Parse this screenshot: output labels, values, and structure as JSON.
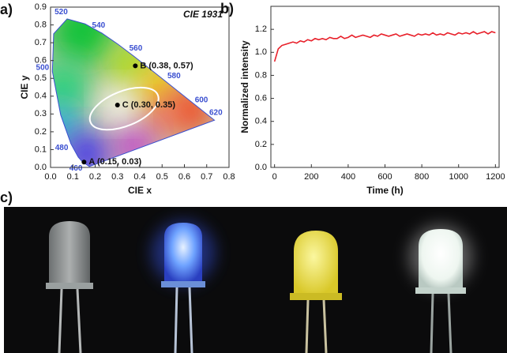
{
  "chart_data": [
    {
      "type": "scatter",
      "label": "a)",
      "title": "CIE 1931",
      "xlabel": "CIE x",
      "ylabel": "CIE y",
      "xlim": [
        0,
        0.8
      ],
      "ylim": [
        0,
        0.9
      ],
      "xticks": [
        {
          "value": 0,
          "label": "0.0"
        },
        0.1,
        0.2,
        0.3,
        0.4,
        0.5,
        0.6,
        0.7,
        0.8
      ],
      "yticks": [
        {
          "value": 0,
          "label": "0.0"
        },
        0.1,
        0.2,
        0.3,
        0.4,
        0.5,
        0.6,
        0.7,
        0.8,
        0.9
      ],
      "locus": {
        "color": "#3a4fd0",
        "x": [
          0.1741,
          0.144,
          0.1241,
          0.0913,
          0.0454,
          0.0082,
          0.0139,
          0.0743,
          0.1547,
          0.2296,
          0.3016,
          0.3731,
          0.4441,
          0.5125,
          0.627,
          0.6915,
          0.7347
        ],
        "y": [
          0.005,
          0.0297,
          0.0578,
          0.1327,
          0.295,
          0.5384,
          0.7502,
          0.8338,
          0.8059,
          0.7543,
          0.6923,
          0.6245,
          0.5547,
          0.4866,
          0.3725,
          0.3083,
          0.2653
        ],
        "labels": [
          null,
          "460",
          null,
          "480",
          null,
          "500",
          null,
          "520",
          null,
          "540",
          null,
          "560",
          null,
          "580",
          "600",
          "620",
          null
        ]
      },
      "series": [
        {
          "color": "#000000",
          "x": [
            0.15,
            0.38,
            0.3
          ],
          "values": [
            0.03,
            0.57,
            0.35
          ],
          "value_labels": [
            "A (0.15, 0.03)",
            "B (0.38, 0.57)",
            "C (0.30, 0.35)"
          ]
        }
      ]
    },
    {
      "type": "line",
      "label": "b)",
      "xlabel": "Time (h)",
      "ylabel": "Normalized intensity",
      "xlim": [
        -20,
        1220
      ],
      "ylim": [
        0,
        1.4
      ],
      "xticks": [
        0,
        200,
        400,
        600,
        800,
        1000,
        1200
      ],
      "yticks": [
        {
          "value": 0,
          "label": "0.0"
        },
        0.2,
        0.4,
        0.6,
        0.8,
        {
          "value": 1,
          "label": "1.0"
        },
        1.2
      ],
      "x": [
        0,
        20,
        40,
        60,
        80,
        100,
        120,
        140,
        160,
        180,
        200,
        220,
        240,
        260,
        280,
        300,
        320,
        340,
        360,
        380,
        400,
        420,
        440,
        460,
        480,
        500,
        520,
        540,
        560,
        580,
        600,
        620,
        640,
        660,
        680,
        700,
        720,
        740,
        760,
        780,
        800,
        820,
        840,
        860,
        880,
        900,
        920,
        940,
        960,
        980,
        1000,
        1020,
        1040,
        1060,
        1080,
        1100,
        1120,
        1140,
        1160,
        1180,
        1200
      ],
      "series": [
        {
          "color": "#e8202a",
          "values": [
            0.92,
            1.03,
            1.06,
            1.07,
            1.08,
            1.09,
            1.08,
            1.1,
            1.09,
            1.11,
            1.1,
            1.12,
            1.11,
            1.12,
            1.11,
            1.13,
            1.12,
            1.12,
            1.14,
            1.12,
            1.13,
            1.15,
            1.13,
            1.14,
            1.15,
            1.14,
            1.13,
            1.15,
            1.14,
            1.16,
            1.15,
            1.14,
            1.15,
            1.16,
            1.14,
            1.15,
            1.16,
            1.15,
            1.14,
            1.16,
            1.15,
            1.16,
            1.15,
            1.17,
            1.15,
            1.16,
            1.15,
            1.17,
            1.16,
            1.15,
            1.17,
            1.16,
            1.17,
            1.16,
            1.18,
            1.16,
            1.17,
            1.18,
            1.16,
            1.18,
            1.17
          ]
        }
      ]
    }
  ],
  "photo": {
    "label": "c)"
  }
}
